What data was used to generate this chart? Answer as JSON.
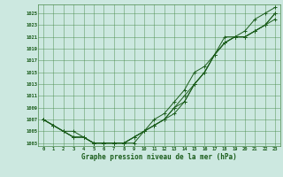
{
  "title": "Graphe pression niveau de la mer (hPa)",
  "bg_color": "#cce8e0",
  "grid_color": "#4a8a4a",
  "line_color": "#1a5c1a",
  "xlim": [
    -0.5,
    23.5
  ],
  "ylim": [
    1002.5,
    1026.5
  ],
  "xticks": [
    0,
    1,
    2,
    3,
    4,
    5,
    6,
    7,
    8,
    9,
    10,
    11,
    12,
    13,
    14,
    15,
    16,
    17,
    18,
    19,
    20,
    21,
    22,
    23
  ],
  "yticks": [
    1003,
    1005,
    1007,
    1009,
    1011,
    1013,
    1015,
    1017,
    1019,
    1021,
    1023,
    1025
  ],
  "series": [
    [
      1007,
      1006,
      1005,
      1004,
      1004,
      1003,
      1003,
      1003,
      1003,
      1003,
      1005,
      1007,
      1008,
      1010,
      1012,
      1015,
      1016,
      1018,
      1021,
      1021,
      1022,
      1024,
      1025,
      1026
    ],
    [
      1007,
      1006,
      1005,
      1005,
      1004,
      1003,
      1003,
      1003,
      1003,
      1004,
      1005,
      1006,
      1007,
      1009,
      1011,
      1013,
      1015,
      1018,
      1020,
      1021,
      1021,
      1022,
      1023,
      1025
    ],
    [
      1007,
      1006,
      1005,
      1004,
      1004,
      1003,
      1003,
      1003,
      1003,
      1004,
      1005,
      1006,
      1007,
      1008,
      1010,
      1013,
      1015,
      1018,
      1020,
      1021,
      1021,
      1022,
      1023,
      1025
    ],
    [
      1007,
      1006,
      1005,
      1004,
      1004,
      1003,
      1003,
      1003,
      1003,
      1004,
      1005,
      1006,
      1007,
      1009,
      1010,
      1013,
      1015,
      1018,
      1020,
      1021,
      1021,
      1022,
      1023,
      1024
    ]
  ]
}
